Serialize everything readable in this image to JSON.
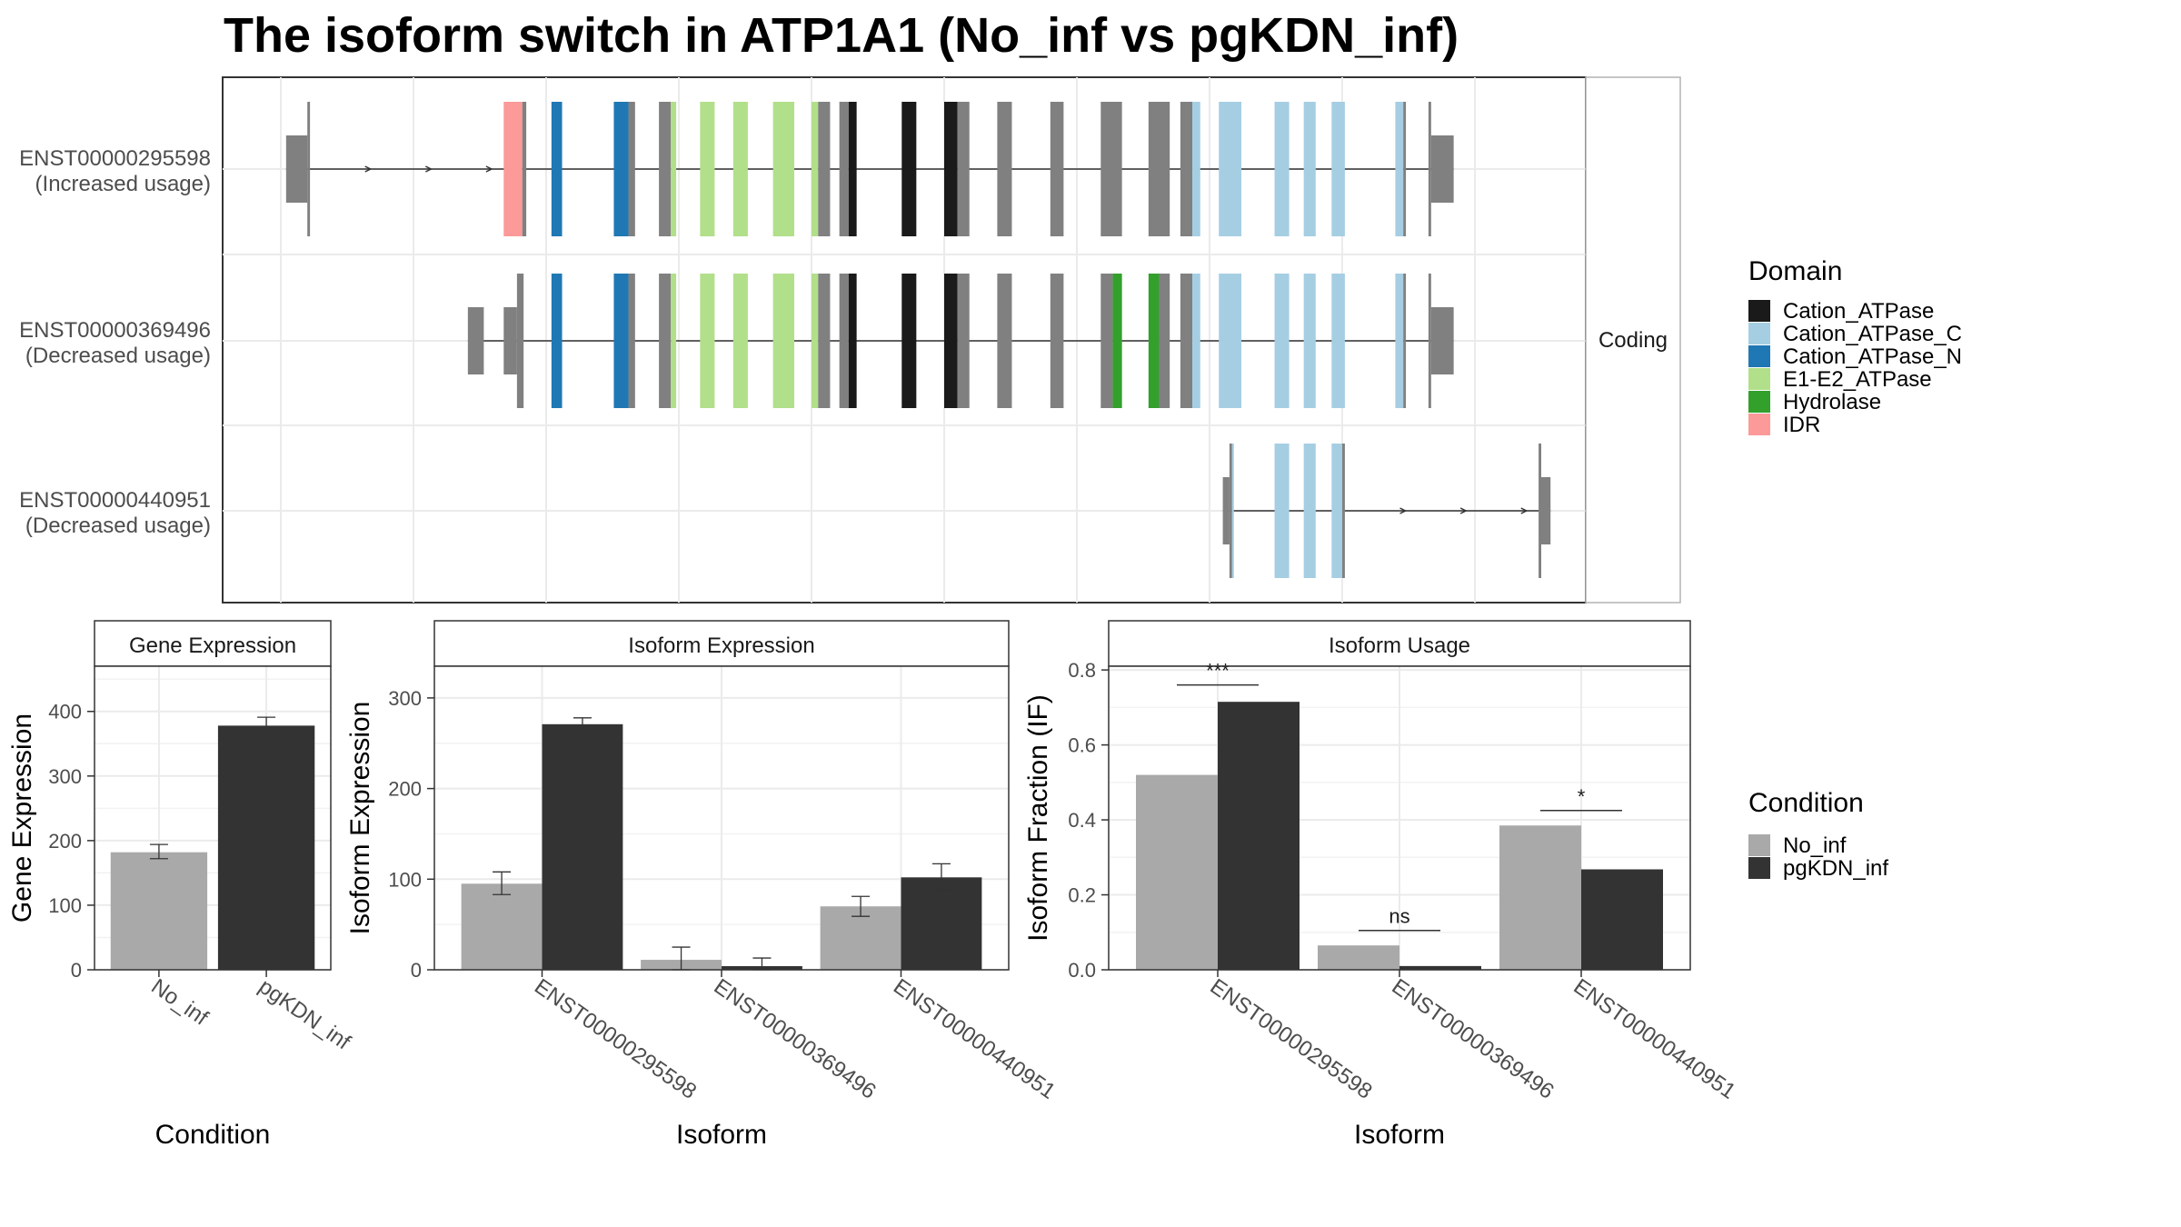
{
  "title": "The isoform switch in ATP1A1 (No_inf vs pgKDN_inf)",
  "colors": {
    "Cation_ATPase": "#1a1a1a",
    "Cation_ATPase_C": "#a6cee3",
    "Cation_ATPase_N": "#1f78b4",
    "E1-E2_ATPase": "#b2df8a",
    "Hydrolase": "#33a02c",
    "IDR": "#fb9a99",
    "none": "#808080",
    "No_inf": "#a9a9a9",
    "pgKDN_inf": "#333333"
  },
  "structure": {
    "facet_label": "Coding",
    "genomic_range": [
      0,
      1000
    ],
    "isoforms": [
      {
        "id": "ENST00000295598",
        "usage": "(Increased usage)",
        "exons": [
          {
            "s": 4,
            "e": 20,
            "h": "utr",
            "d": "none"
          },
          {
            "s": 20,
            "e": 22,
            "h": "cds",
            "d": "none"
          },
          {
            "s": 168,
            "e": 182,
            "h": "cds",
            "d": "IDR"
          },
          {
            "s": 182,
            "e": 185,
            "h": "cds",
            "d": "none"
          },
          {
            "s": 204,
            "e": 212,
            "h": "cds",
            "d": "Cation_ATPase_N"
          },
          {
            "s": 251,
            "e": 262,
            "h": "cds",
            "d": "Cation_ATPase_N"
          },
          {
            "s": 262,
            "e": 267,
            "h": "cds",
            "d": "none"
          },
          {
            "s": 285,
            "e": 294,
            "h": "cds",
            "d": "none"
          },
          {
            "s": 294,
            "e": 298,
            "h": "cds",
            "d": "E1-E2_ATPase"
          },
          {
            "s": 316,
            "e": 327,
            "h": "cds",
            "d": "E1-E2_ATPase"
          },
          {
            "s": 341,
            "e": 352,
            "h": "cds",
            "d": "E1-E2_ATPase"
          },
          {
            "s": 371,
            "e": 387,
            "h": "cds",
            "d": "E1-E2_ATPase"
          },
          {
            "s": 400,
            "e": 405,
            "h": "cds",
            "d": "E1-E2_ATPase"
          },
          {
            "s": 405,
            "e": 414,
            "h": "cds",
            "d": "none"
          },
          {
            "s": 421,
            "e": 428,
            "h": "cds",
            "d": "none"
          },
          {
            "s": 428,
            "e": 434,
            "h": "cds",
            "d": "Cation_ATPase"
          },
          {
            "s": 468,
            "e": 479,
            "h": "cds",
            "d": "Cation_ATPase"
          },
          {
            "s": 500,
            "e": 510,
            "h": "cds",
            "d": "Cation_ATPase"
          },
          {
            "s": 510,
            "e": 519,
            "h": "cds",
            "d": "none"
          },
          {
            "s": 540,
            "e": 551,
            "h": "cds",
            "d": "none"
          },
          {
            "s": 580,
            "e": 590,
            "h": "cds",
            "d": "none"
          },
          {
            "s": 618,
            "e": 634,
            "h": "cds",
            "d": "none"
          },
          {
            "s": 654,
            "e": 670,
            "h": "cds",
            "d": "none"
          },
          {
            "s": 678,
            "e": 687,
            "h": "cds",
            "d": "none"
          },
          {
            "s": 687,
            "e": 693,
            "h": "cds",
            "d": "Cation_ATPase_C"
          },
          {
            "s": 707,
            "e": 724,
            "h": "cds",
            "d": "Cation_ATPase_C"
          },
          {
            "s": 749,
            "e": 760,
            "h": "cds",
            "d": "Cation_ATPase_C"
          },
          {
            "s": 771,
            "e": 780,
            "h": "cds",
            "d": "Cation_ATPase_C"
          },
          {
            "s": 792,
            "e": 802,
            "h": "cds",
            "d": "Cation_ATPase_C"
          },
          {
            "s": 840,
            "e": 846,
            "h": "cds",
            "d": "Cation_ATPase_C"
          },
          {
            "s": 846,
            "e": 848,
            "h": "cds",
            "d": "none"
          },
          {
            "s": 865,
            "e": 867,
            "h": "cds",
            "d": "none"
          },
          {
            "s": 867,
            "e": 884,
            "h": "utr",
            "d": "none"
          }
        ]
      },
      {
        "id": "ENST00000369496",
        "usage": "(Decreased usage)",
        "exons": [
          {
            "s": 141,
            "e": 153,
            "h": "utr",
            "d": "none"
          },
          {
            "s": 168,
            "e": 178,
            "h": "utr",
            "d": "none"
          },
          {
            "s": 178,
            "e": 183,
            "h": "cds",
            "d": "none"
          },
          {
            "s": 204,
            "e": 212,
            "h": "cds",
            "d": "Cation_ATPase_N"
          },
          {
            "s": 251,
            "e": 262,
            "h": "cds",
            "d": "Cation_ATPase_N"
          },
          {
            "s": 262,
            "e": 267,
            "h": "cds",
            "d": "none"
          },
          {
            "s": 285,
            "e": 294,
            "h": "cds",
            "d": "none"
          },
          {
            "s": 294,
            "e": 298,
            "h": "cds",
            "d": "E1-E2_ATPase"
          },
          {
            "s": 316,
            "e": 327,
            "h": "cds",
            "d": "E1-E2_ATPase"
          },
          {
            "s": 341,
            "e": 352,
            "h": "cds",
            "d": "E1-E2_ATPase"
          },
          {
            "s": 371,
            "e": 387,
            "h": "cds",
            "d": "E1-E2_ATPase"
          },
          {
            "s": 400,
            "e": 405,
            "h": "cds",
            "d": "E1-E2_ATPase"
          },
          {
            "s": 405,
            "e": 414,
            "h": "cds",
            "d": "none"
          },
          {
            "s": 421,
            "e": 428,
            "h": "cds",
            "d": "none"
          },
          {
            "s": 428,
            "e": 434,
            "h": "cds",
            "d": "Cation_ATPase"
          },
          {
            "s": 468,
            "e": 479,
            "h": "cds",
            "d": "Cation_ATPase"
          },
          {
            "s": 500,
            "e": 510,
            "h": "cds",
            "d": "Cation_ATPase"
          },
          {
            "s": 510,
            "e": 519,
            "h": "cds",
            "d": "none"
          },
          {
            "s": 540,
            "e": 551,
            "h": "cds",
            "d": "none"
          },
          {
            "s": 580,
            "e": 590,
            "h": "cds",
            "d": "none"
          },
          {
            "s": 618,
            "e": 627,
            "h": "cds",
            "d": "none"
          },
          {
            "s": 627,
            "e": 634,
            "h": "cds",
            "d": "Hydrolase"
          },
          {
            "s": 654,
            "e": 662,
            "h": "cds",
            "d": "Hydrolase"
          },
          {
            "s": 662,
            "e": 670,
            "h": "cds",
            "d": "none"
          },
          {
            "s": 678,
            "e": 687,
            "h": "cds",
            "d": "none"
          },
          {
            "s": 687,
            "e": 693,
            "h": "cds",
            "d": "Cation_ATPase_C"
          },
          {
            "s": 707,
            "e": 724,
            "h": "cds",
            "d": "Cation_ATPase_C"
          },
          {
            "s": 749,
            "e": 760,
            "h": "cds",
            "d": "Cation_ATPase_C"
          },
          {
            "s": 771,
            "e": 780,
            "h": "cds",
            "d": "Cation_ATPase_C"
          },
          {
            "s": 792,
            "e": 802,
            "h": "cds",
            "d": "Cation_ATPase_C"
          },
          {
            "s": 840,
            "e": 846,
            "h": "cds",
            "d": "Cation_ATPase_C"
          },
          {
            "s": 846,
            "e": 848,
            "h": "cds",
            "d": "none"
          },
          {
            "s": 865,
            "e": 867,
            "h": "cds",
            "d": "none"
          },
          {
            "s": 867,
            "e": 884,
            "h": "utr",
            "d": "none"
          }
        ]
      },
      {
        "id": "ENST00000440951",
        "usage": "(Decreased usage)",
        "exons": [
          {
            "s": 710,
            "e": 715,
            "h": "utr",
            "d": "none"
          },
          {
            "s": 715,
            "e": 717,
            "h": "cds",
            "d": "none"
          },
          {
            "s": 717,
            "e": 718,
            "h": "cds",
            "d": "Cation_ATPase_C"
          },
          {
            "s": 749,
            "e": 760,
            "h": "cds",
            "d": "Cation_ATPase_C"
          },
          {
            "s": 771,
            "e": 780,
            "h": "cds",
            "d": "Cation_ATPase_C"
          },
          {
            "s": 792,
            "e": 800,
            "h": "cds",
            "d": "Cation_ATPase_C"
          },
          {
            "s": 800,
            "e": 802,
            "h": "cds",
            "d": "none"
          },
          {
            "s": 948,
            "e": 950,
            "h": "cds",
            "d": "none"
          },
          {
            "s": 950,
            "e": 957,
            "h": "utr",
            "d": "none"
          }
        ]
      }
    ]
  },
  "legends": {
    "domain_title": "Domain",
    "domains": [
      "Cation_ATPase",
      "Cation_ATPase_C",
      "Cation_ATPase_N",
      "E1-E2_ATPase",
      "Hydrolase",
      "IDR"
    ],
    "condition_title": "Condition",
    "conditions": [
      "No_inf",
      "pgKDN_inf"
    ]
  },
  "chart_data": [
    {
      "type": "bar",
      "title": "Gene Expression",
      "xlabel": "Condition",
      "ylabel": "Gene Expression",
      "ylim": [
        0,
        470
      ],
      "yticks": [
        0,
        100,
        200,
        300,
        400
      ],
      "categories": [
        "No_inf",
        "pgKDN_inf"
      ],
      "values": [
        182,
        378
      ],
      "error": [
        [
          172,
          194
        ],
        [
          366,
          391
        ]
      ]
    },
    {
      "type": "bar",
      "title": "Isoform Expression",
      "xlabel": "Isoform",
      "ylabel": "Isoform Expression",
      "ylim": [
        0,
        335
      ],
      "yticks": [
        0,
        100,
        200,
        300
      ],
      "categories": [
        "ENST00000295598",
        "ENST00000369496",
        "ENST00000440951"
      ],
      "series": [
        {
          "name": "No_inf",
          "values": [
            95,
            11,
            70
          ],
          "error": [
            [
              83,
              108
            ],
            [
              0,
              25
            ],
            [
              59,
              81
            ]
          ]
        },
        {
          "name": "pgKDN_inf",
          "values": [
            271,
            4,
            102
          ],
          "error": [
            [
              264,
              278
            ],
            [
              0,
              13
            ],
            [
              88,
              117
            ]
          ]
        }
      ]
    },
    {
      "type": "bar",
      "title": "Isoform Usage",
      "xlabel": "Isoform",
      "ylabel": "Isoform Fraction (IF)",
      "ylim": [
        0,
        0.81
      ],
      "yticks": [
        0.0,
        0.2,
        0.4,
        0.6,
        0.8
      ],
      "categories": [
        "ENST00000295598",
        "ENST00000369496",
        "ENST00000440951"
      ],
      "series": [
        {
          "name": "No_inf",
          "values": [
            0.52,
            0.065,
            0.385
          ]
        },
        {
          "name": "pgKDN_inf",
          "values": [
            0.715,
            0.01,
            0.268
          ]
        }
      ],
      "significance": [
        {
          "category": 0,
          "y": 0.76,
          "label": "***"
        },
        {
          "category": 1,
          "y": 0.105,
          "label": "ns"
        },
        {
          "category": 2,
          "y": 0.425,
          "label": "*"
        }
      ]
    }
  ]
}
